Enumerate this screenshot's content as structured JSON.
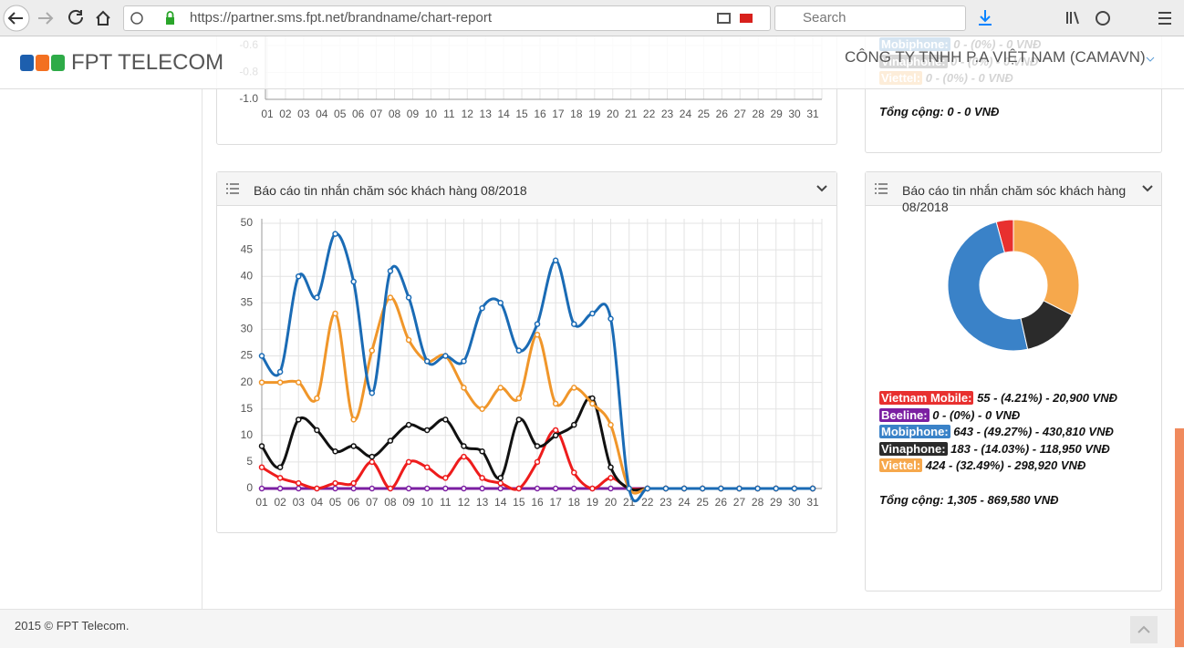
{
  "browser": {
    "url": "https://partner.sms.fpt.net/brandname/chart-report",
    "search_placeholder": "Search"
  },
  "header": {
    "brand": "FPT TELECOM",
    "company": "CÔNG TY TNHH P.A VIỆT NAM (CAMAVN)"
  },
  "top_summary": {
    "items": [
      {
        "label": "Mobiphone:",
        "text": "0 - (0%) - 0 VNĐ",
        "color": "#1b6ab0"
      },
      {
        "label": "Vinaphone:",
        "text": "0 - (0%) - 0 VNĐ",
        "color": "#222222"
      },
      {
        "label": "Viettel:",
        "text": "0 - (0%) - 0 VNĐ",
        "color": "#f39a2c"
      }
    ],
    "total": "Tổng cộng: 0 - 0 VNĐ"
  },
  "chart_data": [
    {
      "type": "line",
      "categories": [
        "01",
        "02",
        "03",
        "04",
        "05",
        "06",
        "07",
        "08",
        "09",
        "10",
        "11",
        "12",
        "13",
        "14",
        "15",
        "16",
        "17",
        "18",
        "19",
        "20",
        "21",
        "22",
        "23",
        "24",
        "25",
        "26",
        "27",
        "28",
        "29",
        "30",
        "31"
      ],
      "ylim": [
        -1,
        -0.6
      ],
      "yticks": [
        -0.6,
        -0.8,
        {
          "value": -1,
          "label": "-1.0"
        }
      ],
      "grid": true
    },
    {
      "type": "line",
      "title": "Báo cáo tin nhắn chăm sóc khách hàng 08/2018",
      "categories": [
        "01",
        "02",
        "03",
        "04",
        "05",
        "06",
        "07",
        "08",
        "09",
        "10",
        "11",
        "12",
        "13",
        "14",
        "15",
        "16",
        "17",
        "18",
        "19",
        "20",
        "21",
        "22",
        "23",
        "24",
        "25",
        "26",
        "27",
        "28",
        "29",
        "30",
        "31"
      ],
      "ylim": [
        0,
        50
      ],
      "yticks": [
        0,
        5,
        10,
        15,
        20,
        25,
        30,
        35,
        40,
        45,
        50
      ],
      "grid": true,
      "smooth": true,
      "series": [
        {
          "color": "#1a6bb5",
          "values": [
            25,
            22,
            40,
            36,
            48,
            39,
            18,
            41,
            36,
            24,
            25,
            24,
            34,
            35,
            26,
            31,
            43,
            31,
            33,
            32,
            0,
            0,
            0,
            0,
            0,
            0,
            0,
            0,
            0,
            0,
            0
          ]
        },
        {
          "color": "#f0962a",
          "values": [
            20,
            20,
            20,
            17,
            33,
            13,
            26,
            36,
            28,
            24,
            25,
            19,
            15,
            19,
            17,
            29,
            16,
            19,
            16,
            12,
            0,
            0,
            0,
            0,
            0,
            0,
            0,
            0,
            0,
            0,
            0
          ]
        },
        {
          "color": "#111111",
          "values": [
            8,
            4,
            13,
            11,
            7,
            8,
            6,
            9,
            12,
            11,
            13,
            8,
            7,
            2,
            13,
            8,
            10,
            12,
            17,
            4,
            0,
            0,
            0,
            0,
            0,
            0,
            0,
            0,
            0,
            0,
            0
          ]
        },
        {
          "color": "#ee1c1c",
          "values": [
            4,
            2,
            1,
            0,
            1,
            1,
            5,
            0,
            5,
            4,
            2,
            6,
            2,
            1,
            0,
            5,
            11,
            3,
            0,
            2,
            0,
            0,
            0,
            0,
            0,
            0,
            0,
            0,
            0,
            0,
            0
          ]
        },
        {
          "color": "#7b1fa2",
          "values": [
            0,
            0,
            0,
            0,
            0,
            0,
            0,
            0,
            0,
            0,
            0,
            0,
            0,
            0,
            0,
            0,
            0,
            0,
            0,
            0,
            0,
            0,
            0,
            0,
            0,
            0,
            0,
            0,
            0,
            0,
            0
          ]
        }
      ]
    },
    {
      "type": "pie",
      "donut": true,
      "title": "Báo cáo tin nhắn chăm sóc khách hàng 08/2018",
      "categories": [
        "Vietnam Mobile:",
        "Beeline:",
        "Mobiphone:",
        "Vinaphone:",
        "Viettel:"
      ],
      "values": [
        55,
        0,
        643,
        183,
        424
      ],
      "colors": [
        "#e8302f",
        "#7b1fa2",
        "#3a82c8",
        "#2b2b2b",
        "#f6a84c"
      ],
      "details": [
        "55 - (4.21%) - 20,900 VNĐ",
        "0 - (0%) - 0 VNĐ",
        "643 - (49.27%) - 430,810 VNĐ",
        "183 - (14.03%) - 118,950 VNĐ",
        "424 - (32.49%) - 298,920 VNĐ"
      ],
      "total": "Tổng cộng: 1,305 - 869,580 VNĐ"
    }
  ],
  "footer": "2015 © FPT Telecom."
}
